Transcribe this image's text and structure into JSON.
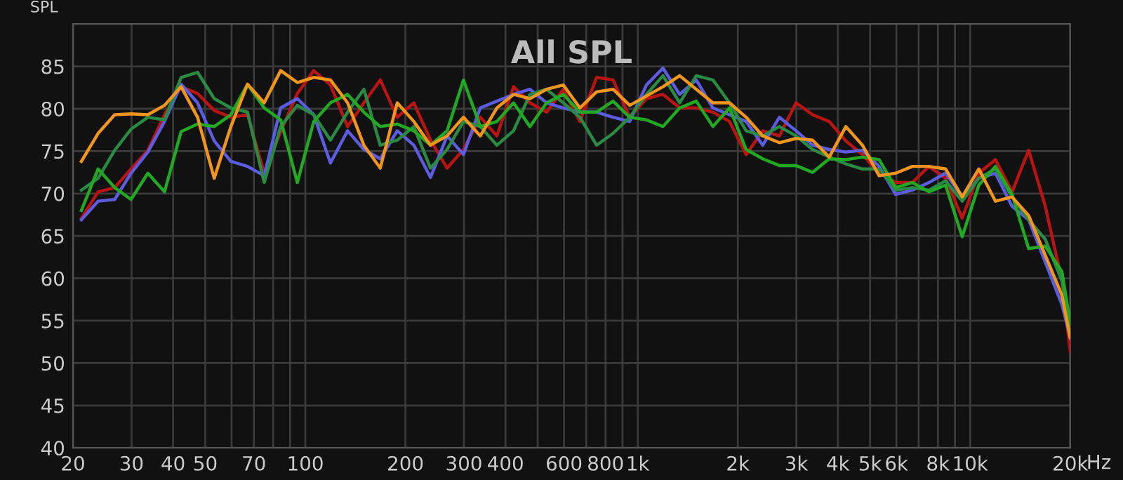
{
  "chart_data": {
    "type": "line",
    "title": "All SPL",
    "ylabel": "SPL",
    "log": "x",
    "grid": true,
    "legend": false,
    "marker": "none",
    "line_style": "solid",
    "x": [
      21.2,
      23.8,
      26.7,
      29.9,
      33.6,
      37.7,
      42.3,
      47.4,
      53.2,
      59.7,
      67.0,
      75.2,
      84.3,
      94.6,
      106,
      119,
      134,
      150,
      168,
      189,
      212,
      238,
      267,
      299,
      336,
      377,
      423,
      474,
      532,
      597,
      670,
      752,
      843,
      946,
      1062,
      1191,
      1337,
      1500,
      1683,
      1888,
      2119,
      2377,
      2667,
      2993,
      3358,
      3768,
      4228,
      4743,
      5322,
      5971,
      6700,
      7518,
      8435,
      9464,
      10619,
      11915,
      13369,
      15000,
      16830,
      18884,
      20000
    ],
    "series": [
      {
        "color": "#b81414",
        "values": [
          67.1,
          70.2,
          70.7,
          72.9,
          75.1,
          79.3,
          82.6,
          81.8,
          79.8,
          79,
          79.3,
          72.4,
          77.3,
          81.8,
          84.5,
          82.8,
          77.9,
          80.7,
          83.4,
          79,
          80.7,
          76.3,
          73,
          75.2,
          79,
          76.8,
          82.6,
          80.7,
          79.6,
          82.3,
          78.5,
          83.7,
          83.4,
          79,
          81.2,
          81.7,
          80.1,
          80.1,
          79.6,
          78.5,
          74.6,
          77.4,
          76.8,
          80.7,
          79.3,
          78.5,
          76.2,
          74.6,
          72.4,
          71.3,
          71.3,
          73.2,
          71.8,
          67.1,
          72.4,
          74,
          70.2,
          75.1,
          68.5,
          59.7,
          51.4
        ]
      },
      {
        "color": "#5c5ce0",
        "values": [
          66.9,
          69.1,
          69.3,
          72.4,
          74.9,
          78.5,
          82.9,
          80.7,
          76.2,
          73.8,
          73.2,
          72.1,
          80.1,
          81.2,
          79.3,
          73.6,
          77.4,
          75.2,
          74.1,
          77.4,
          75.7,
          71.9,
          76.8,
          74.6,
          80.1,
          80.9,
          81.7,
          82.3,
          80.7,
          80.1,
          79.6,
          79.6,
          79,
          78.5,
          82.8,
          84.8,
          81.7,
          83.4,
          80.1,
          79.3,
          78.5,
          75.7,
          79,
          77.4,
          75.7,
          75.2,
          74.9,
          75.1,
          73.2,
          69.9,
          70.4,
          71.3,
          72.4,
          69.6,
          71.8,
          72.4,
          68.5,
          66.9,
          61.9,
          56.9,
          53
        ]
      },
      {
        "color": "#2a8a44",
        "values": [
          70.4,
          71.8,
          75.1,
          77.6,
          79,
          78.7,
          83.7,
          84.3,
          81.2,
          80.1,
          79.6,
          71.3,
          77.9,
          80.4,
          79.3,
          76.3,
          79.6,
          82.3,
          75.7,
          76.3,
          77.9,
          73,
          75.2,
          78.5,
          77.9,
          75.7,
          77.4,
          81.7,
          82.3,
          80.7,
          79,
          75.7,
          77.1,
          79,
          81.7,
          83.9,
          80.7,
          83.9,
          83.4,
          80.7,
          77.4,
          76.8,
          77.9,
          76.8,
          75.2,
          74.3,
          73.5,
          72.9,
          72.9,
          70.4,
          70.7,
          70.4,
          71.5,
          69.1,
          71.8,
          72.9,
          69.6,
          66.9,
          64.6,
          59.7,
          53.6
        ]
      },
      {
        "color": "#22a822",
        "values": [
          68,
          72.9,
          70.7,
          69.3,
          72.4,
          70.2,
          77.3,
          78.2,
          77.9,
          79.3,
          82.9,
          80.1,
          78.7,
          71.3,
          78.5,
          80.7,
          81.7,
          79.6,
          77.9,
          78.2,
          77.4,
          75.7,
          77.4,
          83.4,
          77.9,
          78.5,
          80.7,
          77.9,
          80.7,
          81.7,
          79.6,
          79.6,
          80.9,
          79,
          78.7,
          77.9,
          80.1,
          80.9,
          77.9,
          80.1,
          75.2,
          74.1,
          73.3,
          73.3,
          72.5,
          74.1,
          74,
          74.3,
          74,
          70.7,
          71.3,
          70.2,
          71,
          64.9,
          71,
          73.2,
          69.9,
          63.5,
          63.8,
          60.8,
          54.7
        ]
      },
      {
        "color": "#f0961e",
        "values": [
          73.8,
          77.1,
          79.3,
          79.4,
          79.3,
          80.4,
          82.6,
          79,
          71.8,
          77.9,
          82.9,
          80.7,
          84.5,
          83.1,
          83.7,
          83.4,
          80.7,
          75.7,
          73,
          80.7,
          78.5,
          75.7,
          76.8,
          79,
          76.8,
          80.1,
          81.7,
          81.2,
          82.3,
          82.8,
          80.1,
          82,
          82.3,
          80.4,
          81.5,
          82.6,
          83.9,
          82.3,
          80.7,
          80.7,
          79,
          76.8,
          76,
          76.5,
          76.3,
          74.3,
          77.9,
          75.7,
          72.1,
          72.4,
          73.2,
          73.2,
          72.9,
          69.6,
          72.9,
          69.1,
          69.6,
          67.4,
          62.7,
          58,
          53
        ]
      }
    ],
    "xlim": [
      20,
      20000
    ],
    "xticks": [
      20,
      30,
      40,
      50,
      {
        "value": 60,
        "label": null
      },
      70,
      {
        "value": 80,
        "label": null
      },
      {
        "value": 90,
        "label": null
      },
      100,
      200,
      300,
      400,
      {
        "value": 500,
        "label": null
      },
      600,
      {
        "value": 700,
        "label": null
      },
      800,
      {
        "value": 900,
        "label": null
      },
      {
        "value": 1000,
        "label": "1k"
      },
      {
        "value": 2000,
        "label": "2k"
      },
      {
        "value": 3000,
        "label": "3k"
      },
      {
        "value": 4000,
        "label": "4k"
      },
      {
        "value": 5000,
        "label": "5k"
      },
      {
        "value": 6000,
        "label": "6k"
      },
      {
        "value": 7000,
        "label": null
      },
      {
        "value": 8000,
        "label": "8k"
      },
      {
        "value": 9000,
        "label": null
      },
      {
        "value": 10000,
        "label": "10k"
      },
      {
        "value": 20000,
        "label": "20k"
      }
    ],
    "xlabel": "Hz",
    "ylim": [
      40,
      90
    ],
    "yticks": [
      40,
      45,
      50,
      55,
      60,
      65,
      70,
      75,
      80,
      85
    ]
  }
}
